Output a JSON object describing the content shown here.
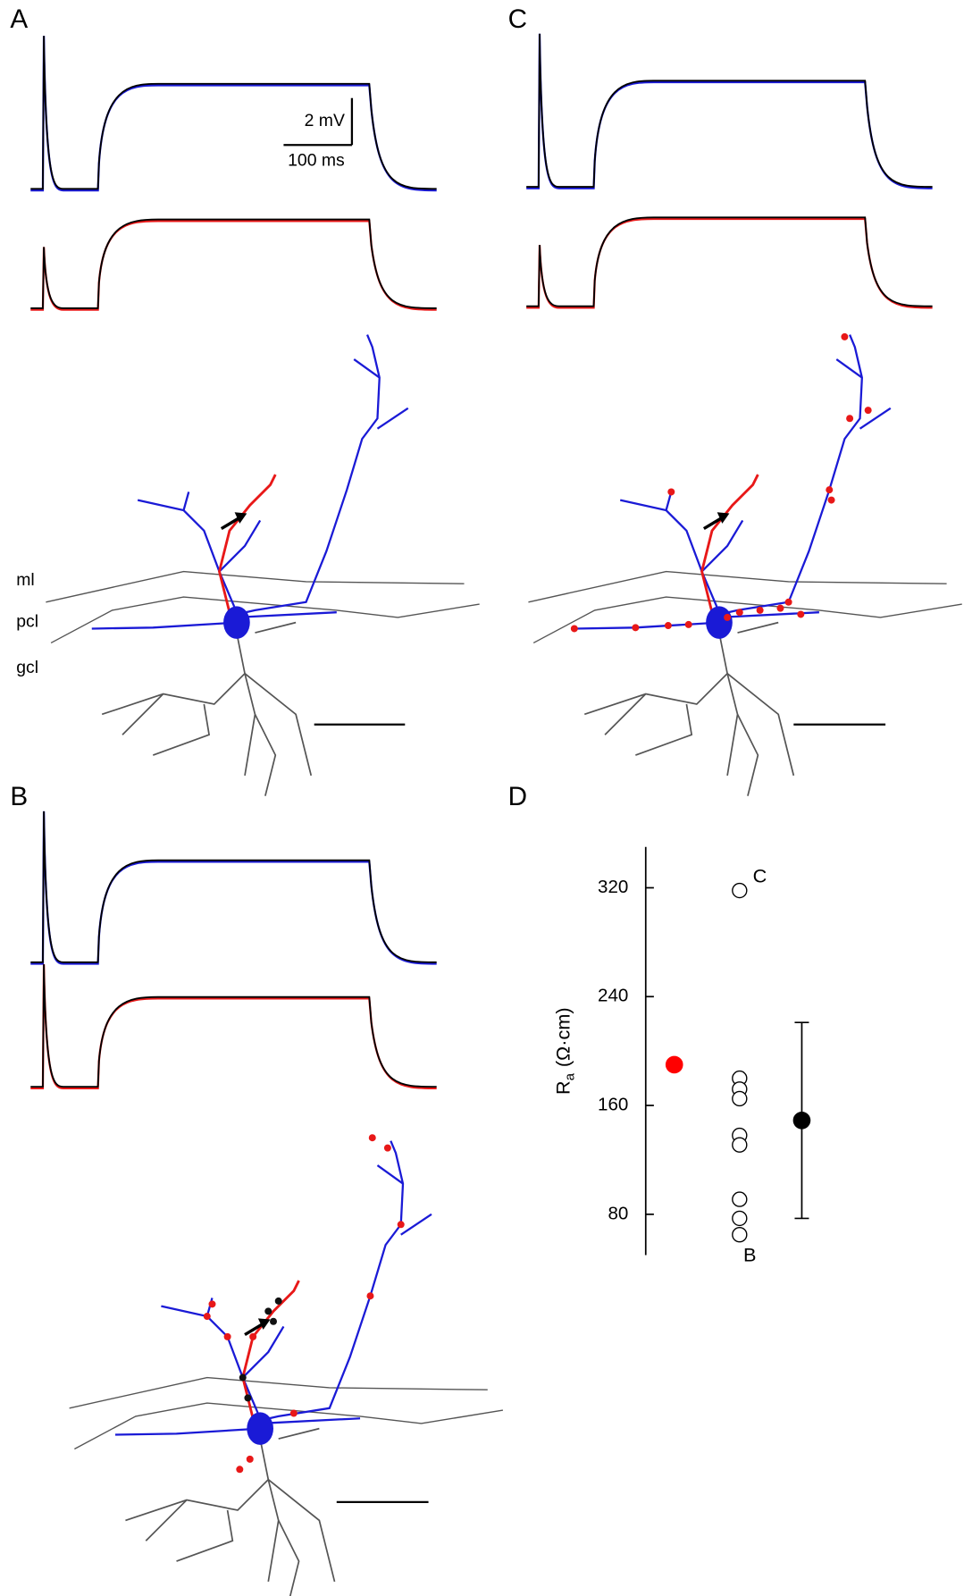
{
  "panels": {
    "a": "A",
    "b": "B",
    "c": "C",
    "d": "D"
  },
  "scale_bar": {
    "voltage": "2 mV",
    "time": "100 ms"
  },
  "layers": {
    "ml": "ml",
    "pcl": "pcl",
    "gcl": "gcl"
  },
  "chart_data": {
    "type": "scatter",
    "y_label": {
      "main": "R",
      "sub": "a",
      "unit": "(Ω·cm)"
    },
    "ylim": [
      50,
      350
    ],
    "yticks": [
      80,
      160,
      240,
      320
    ],
    "annotations": [
      "C",
      "B"
    ],
    "series": [
      {
        "color": "#ff0000",
        "values": [
          190
        ]
      },
      {
        "color": "none",
        "values": [
          318,
          180,
          172,
          165,
          138,
          131,
          91,
          77,
          65
        ]
      },
      {
        "color": "#000000",
        "values": [
          149
        ],
        "errors": [
          72
        ]
      }
    ]
  }
}
